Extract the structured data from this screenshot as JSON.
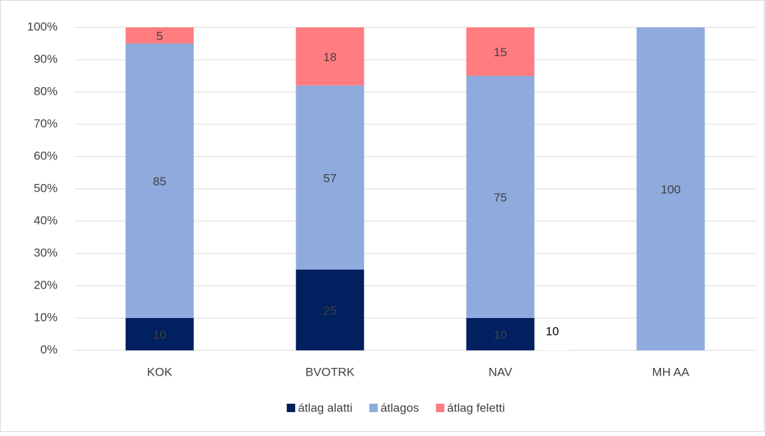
{
  "chart_data": {
    "type": "stacked_bar",
    "categories": [
      "KOK",
      "BVOTRK",
      "NAV",
      "MH AA"
    ],
    "series": [
      {
        "name": "átlag alatti",
        "color": "#002060",
        "values": [
          10,
          25,
          10,
          null
        ]
      },
      {
        "name": "átlagos",
        "color": "#8faadc",
        "values": [
          85,
          57,
          75,
          100
        ]
      },
      {
        "name": "átlag feletti",
        "color": "#ff7c80",
        "values": [
          5,
          18,
          15,
          null
        ]
      }
    ],
    "ylim": [
      0,
      100
    ],
    "yticks": [
      {
        "value": 0,
        "label": "0%"
      },
      {
        "value": 10,
        "label": "10%"
      },
      {
        "value": 20,
        "label": "20%"
      },
      {
        "value": 30,
        "label": "30%"
      },
      {
        "value": 40,
        "label": "40%"
      },
      {
        "value": 50,
        "label": "50%"
      },
      {
        "value": 60,
        "label": "60%"
      },
      {
        "value": 70,
        "label": "70%"
      },
      {
        "value": 80,
        "label": "80%"
      },
      {
        "value": 90,
        "label": "90%"
      },
      {
        "value": 100,
        "label": "100%"
      }
    ],
    "grid": true,
    "legend": "bottom",
    "annotations": [
      {
        "text": "10"
      }
    ]
  }
}
